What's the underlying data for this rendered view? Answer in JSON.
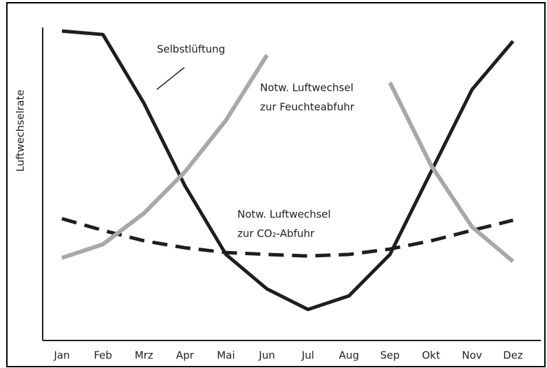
{
  "chart_data": {
    "type": "line",
    "y_label": "Luftwechselrate",
    "categories": [
      "Jan",
      "Feb",
      "Mrz",
      "Apr",
      "Mai",
      "Jun",
      "Jul",
      "Aug",
      "Sep",
      "Okt",
      "Nov",
      "Dez"
    ],
    "ylim": [
      0,
      100
    ],
    "series": [
      {
        "color": "#1e1e1e",
        "style": "solid",
        "values": [
          97.8,
          96.7,
          75,
          48.9,
          27.2,
          16.3,
          9.8,
          14.1,
          27.2,
          53.3,
          79.3,
          94.6
        ]
      },
      {
        "color": "#1e1e1e",
        "style": "dashed",
        "values": [
          38.5,
          34.8,
          31.5,
          29.3,
          27.8,
          27.2,
          26.7,
          27.2,
          28.9,
          31.5,
          34.8,
          38.0
        ]
      },
      {
        "color": "#a8a8a8",
        "style": "dotted",
        "values": [
          26.1,
          30.4,
          40.2,
          53.3,
          69.6,
          90.2,
          null,
          null,
          81.5,
          55.4,
          35.9,
          25.0
        ]
      }
    ],
    "annotations": [
      {
        "lines": [
          "Selbstlüftung"
        ]
      },
      {
        "lines": [
          "Notw. Luftwechsel",
          "zur Feuchteabfuhr"
        ]
      },
      {
        "lines": [
          "Notw. Luftwechsel",
          "zur CO₂-Abfuhr"
        ]
      }
    ]
  }
}
